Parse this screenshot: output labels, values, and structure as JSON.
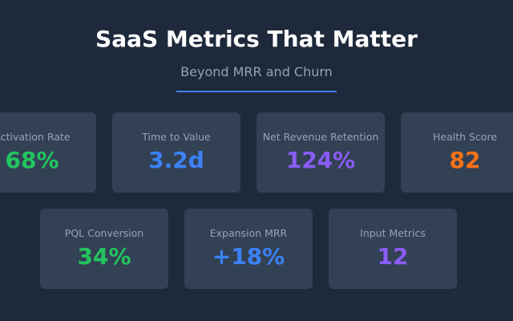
{
  "header": {
    "title": "SaaS Metrics That Matter",
    "subtitle": "Beyond MRR and Churn"
  },
  "rows": [
    [
      {
        "label": "Activation Rate",
        "value": "68%",
        "color": "#22c55e"
      },
      {
        "label": "Time to Value",
        "value": "3.2d",
        "color": "#3b82f6"
      },
      {
        "label": "Net Revenue Retention",
        "value": "124%",
        "color": "#8b5cf6"
      },
      {
        "label": "Health Score",
        "value": "82",
        "color": "#f97316"
      }
    ],
    [
      {
        "label": "PQL Conversion",
        "value": "34%",
        "color": "#22c55e"
      },
      {
        "label": "Expansion MRR",
        "value": "+18%",
        "color": "#3b82f6"
      },
      {
        "label": "Input Metrics",
        "value": "12",
        "color": "#8b5cf6"
      }
    ]
  ]
}
